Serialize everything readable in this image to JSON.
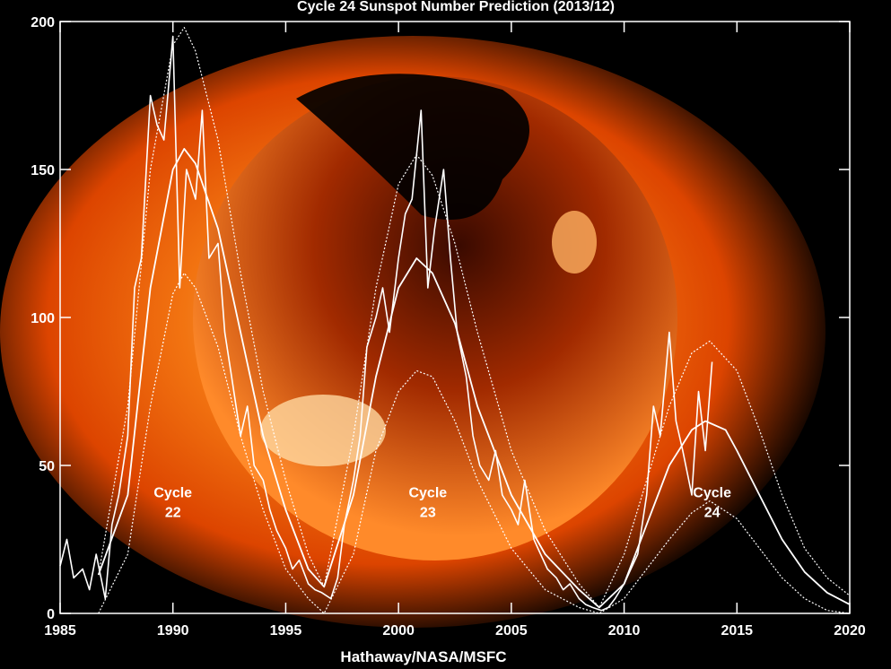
{
  "colors": {
    "background": "#000000",
    "corona_outer": "#ff5a00",
    "corona_inner": "#ffb04a",
    "disk_dark": "#1a0400",
    "line": "#ffffff"
  },
  "chart_data": {
    "type": "line",
    "title": "Cycle 24 Sunspot Number Prediction (2013/12)",
    "xlabel": "Hathaway/NASA/MSFC",
    "ylabel": "",
    "xlim": [
      1985,
      2020
    ],
    "ylim": [
      0,
      200
    ],
    "xticks": [
      1985,
      1990,
      1995,
      2000,
      2005,
      2010,
      2015,
      2020
    ],
    "yticks": [
      0,
      50,
      100,
      150,
      200
    ],
    "grid": false,
    "legend": "none",
    "annotations": [
      {
        "text": "Cycle",
        "sub": "22",
        "x": 1990.0,
        "y": 18
      },
      {
        "text": "Cycle",
        "sub": "23",
        "x": 2001.3,
        "y": 18
      },
      {
        "text": "Cycle",
        "sub": "24",
        "x": 2013.9,
        "y": 18
      }
    ],
    "series": [
      {
        "values_note": "monthly sunspot numbers (approx)",
        "x": [
          1985.0,
          1985.3,
          1985.6,
          1986.0,
          1986.3,
          1986.6,
          1987.0,
          1987.3,
          1987.6,
          1988.0,
          1988.3,
          1988.6,
          1989.0,
          1989.3,
          1989.6,
          1990.0,
          1990.3,
          1990.6,
          1991.0,
          1991.3,
          1991.6,
          1992.0,
          1992.3,
          1992.6,
          1993.0,
          1993.3,
          1993.6,
          1994.0,
          1994.3,
          1994.6,
          1995.0,
          1995.3,
          1995.6,
          1996.0,
          1996.3,
          1996.6,
          1997.0,
          1997.3,
          1997.6,
          1998.0,
          1998.3,
          1998.6,
          1999.0,
          1999.3,
          1999.6,
          2000.0,
          2000.3,
          2000.6,
          2001.0,
          2001.3,
          2001.6,
          2002.0,
          2002.3,
          2002.6,
          2003.0,
          2003.3,
          2003.6,
          2004.0,
          2004.3,
          2004.6,
          2005.0,
          2005.3,
          2005.6,
          2006.0,
          2006.3,
          2006.6,
          2007.0,
          2007.3,
          2007.6,
          2008.0,
          2008.3,
          2008.6,
          2009.0,
          2009.3,
          2009.6,
          2010.0,
          2010.3,
          2010.6,
          2011.0,
          2011.3,
          2011.6,
          2012.0,
          2012.3,
          2012.6,
          2013.0,
          2013.3,
          2013.6,
          2013.9
        ],
        "y": [
          16,
          25,
          12,
          15,
          8,
          20,
          5,
          30,
          40,
          60,
          110,
          120,
          175,
          165,
          160,
          195,
          110,
          150,
          140,
          170,
          120,
          125,
          95,
          80,
          60,
          70,
          50,
          45,
          35,
          28,
          22,
          15,
          18,
          10,
          8,
          7,
          5,
          12,
          30,
          45,
          60,
          90,
          100,
          110,
          95,
          120,
          135,
          140,
          170,
          110,
          130,
          150,
          120,
          95,
          80,
          60,
          50,
          45,
          55,
          40,
          35,
          30,
          45,
          25,
          20,
          15,
          12,
          8,
          10,
          5,
          3,
          2,
          1,
          2,
          5,
          10,
          15,
          20,
          40,
          70,
          60,
          95,
          65,
          55,
          40,
          75,
          55,
          85
        ]
      },
      {
        "name": "",
        "values_note": "smoothed",
        "x": [
          1986.7,
          1988,
          1989,
          1990,
          1990.5,
          1991,
          1992,
          1993,
          1994,
          1995,
          1996,
          1996.7,
          1998,
          1999,
          2000,
          2000.8,
          2001.5,
          2002.5,
          2003.5,
          2005,
          2006.5,
          2008,
          2008.9,
          2010,
          2011,
          2012,
          2013,
          2013.6
        ],
        "y": [
          13,
          40,
          110,
          150,
          157,
          152,
          130,
          95,
          60,
          35,
          15,
          9,
          40,
          80,
          110,
          120,
          115,
          98,
          70,
          40,
          20,
          8,
          2,
          10,
          30,
          50,
          62,
          65
        ]
      },
      {
        "name": "",
        "values_note": "upper bound",
        "x": [
          1986.7,
          1988,
          1989,
          1990,
          1990.5,
          1991,
          1992,
          1993,
          1994,
          1995,
          1996,
          1996.7,
          1998,
          1999,
          2000,
          2000.8,
          2001.5,
          2002.5,
          2003.5,
          2005,
          2006.5,
          2008,
          2008.9,
          2010,
          2011,
          2012,
          2013,
          2013.8,
          2015,
          2016,
          2017,
          2018,
          2019,
          2020
        ],
        "y": [
          13,
          70,
          150,
          192,
          198,
          190,
          160,
          115,
          75,
          45,
          20,
          9,
          60,
          110,
          145,
          155,
          148,
          125,
          95,
          55,
          28,
          10,
          2,
          20,
          45,
          70,
          88,
          92,
          82,
          62,
          40,
          22,
          12,
          6
        ]
      },
      {
        "name": "",
        "values_note": "lower bound",
        "x": [
          1986.7,
          1988,
          1989,
          1990,
          1990.5,
          1991,
          1992,
          1993,
          1994,
          1995,
          1996,
          1996.7,
          1998,
          1999,
          2000,
          2000.8,
          2001.5,
          2002.5,
          2003.5,
          2005,
          2006.5,
          2008,
          2008.9,
          2010,
          2011,
          2012,
          2013,
          2013.8,
          2015,
          2016,
          2017,
          2018,
          2019,
          2020
        ],
        "y": [
          0,
          20,
          70,
          108,
          115,
          110,
          90,
          60,
          35,
          15,
          5,
          0,
          20,
          55,
          75,
          82,
          80,
          65,
          45,
          22,
          8,
          2,
          0,
          5,
          15,
          25,
          34,
          38,
          32,
          22,
          12,
          5,
          1,
          0
        ]
      },
      {
        "name": "",
        "values_note": "predicted smoothed",
        "x": [
          2013.6,
          2014.5,
          2015,
          2016,
          2017,
          2018,
          2019,
          2020
        ],
        "y": [
          65,
          62,
          55,
          40,
          25,
          14,
          7,
          3
        ]
      }
    ]
  }
}
